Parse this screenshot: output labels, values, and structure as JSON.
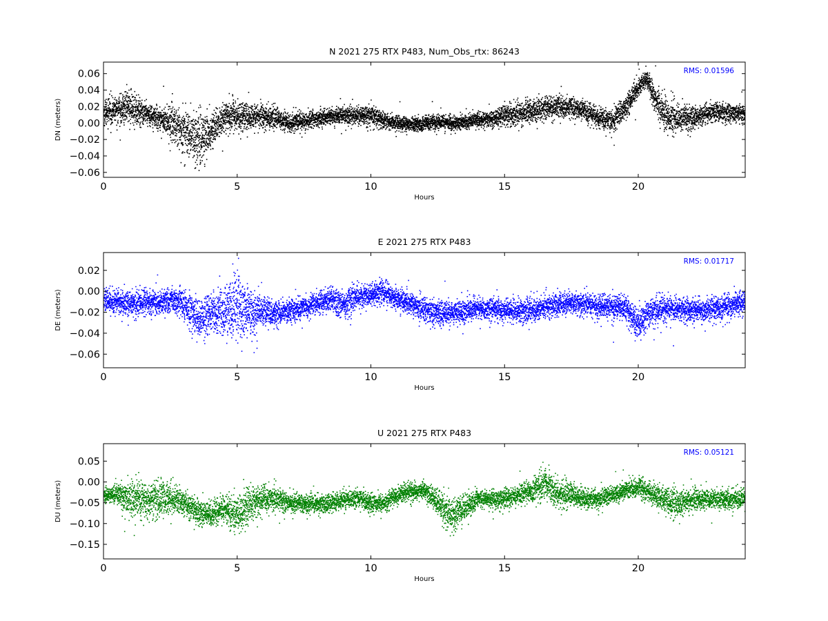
{
  "chart_data": [
    {
      "type": "scatter",
      "title": "N 2021 275 RTX  P483, Num_Obs_rtx: 86243",
      "xlabel": "Hours",
      "ylabel": "DN (meters)",
      "xlim": [
        0,
        24
      ],
      "ylim": [
        -0.066,
        0.074
      ],
      "xticks": [
        0,
        5,
        10,
        15,
        20
      ],
      "xtick_labels": [
        "0",
        "5",
        "10",
        "15",
        "20"
      ],
      "yticks": [
        -0.06,
        -0.04,
        -0.02,
        0.0,
        0.02,
        0.04,
        0.06
      ],
      "ytick_labels": [
        "−0.06",
        "−0.04",
        "−0.02",
        "0.00",
        "0.02",
        "0.04",
        "0.06"
      ],
      "annotation": "RMS:  0.01596",
      "annotation_color": "#0000ff",
      "color": "#000000",
      "grid": false,
      "series": [
        {
          "x": [
            0,
            0.5,
            1,
            1.5,
            2,
            2.5,
            3,
            3.5,
            4,
            4.5,
            5,
            5.5,
            6,
            6.5,
            7,
            7.5,
            8,
            8.5,
            9,
            9.5,
            10,
            10.5,
            11,
            11.5,
            12,
            12.5,
            13,
            13.5,
            14,
            14.5,
            15,
            15.5,
            16,
            16.5,
            17,
            17.5,
            18,
            18.5,
            19,
            19.5,
            20,
            20.3,
            20.6,
            21,
            21.5,
            22,
            22.5,
            23,
            23.5,
            24
          ],
          "y": [
            0.012,
            0.018,
            0.02,
            0.012,
            0.008,
            0.0,
            -0.008,
            -0.02,
            -0.01,
            0.008,
            0.01,
            0.008,
            0.01,
            0.005,
            0.0,
            0.004,
            0.006,
            0.008,
            0.01,
            0.01,
            0.01,
            0.004,
            0.0,
            -0.002,
            0.0,
            0.002,
            0.0,
            0.002,
            0.004,
            0.006,
            0.01,
            0.012,
            0.014,
            0.018,
            0.02,
            0.02,
            0.015,
            0.008,
            0.002,
            0.02,
            0.045,
            0.055,
            0.03,
            0.01,
            0.005,
            0.008,
            0.012,
            0.015,
            0.012,
            0.012
          ],
          "spread": [
            0.012,
            0.015,
            0.018,
            0.012,
            0.012,
            0.02,
            0.025,
            0.03,
            0.02,
            0.015,
            0.016,
            0.015,
            0.013,
            0.012,
            0.01,
            0.01,
            0.009,
            0.009,
            0.01,
            0.01,
            0.01,
            0.009,
            0.008,
            0.008,
            0.008,
            0.008,
            0.008,
            0.008,
            0.008,
            0.009,
            0.011,
            0.013,
            0.013,
            0.013,
            0.012,
            0.011,
            0.01,
            0.01,
            0.012,
            0.012,
            0.01,
            0.01,
            0.015,
            0.018,
            0.015,
            0.012,
            0.01,
            0.01,
            0.01,
            0.01
          ]
        }
      ]
    },
    {
      "type": "scatter",
      "title": "E 2021 275 RTX  P483",
      "xlabel": "Hours",
      "ylabel": "DE (meters)",
      "xlim": [
        0,
        24
      ],
      "ylim": [
        -0.073,
        0.037
      ],
      "xticks": [
        0,
        5,
        10,
        15,
        20
      ],
      "xtick_labels": [
        "0",
        "5",
        "10",
        "15",
        "20"
      ],
      "yticks": [
        -0.06,
        -0.04,
        -0.02,
        0.0,
        0.02
      ],
      "ytick_labels": [
        "−0.06",
        "−0.04",
        "−0.02",
        "0.00",
        "0.02"
      ],
      "annotation": "RMS:  0.01717",
      "annotation_color": "#0000ff",
      "color": "#0000ff",
      "grid": false,
      "series": [
        {
          "x": [
            0,
            0.5,
            1,
            1.5,
            2,
            2.5,
            3,
            3.5,
            4,
            4.5,
            5,
            5.5,
            6,
            6.5,
            7,
            7.5,
            8,
            8.5,
            9,
            9.5,
            10,
            10.5,
            11,
            11.5,
            12,
            12.5,
            13,
            13.5,
            14,
            14.5,
            15,
            15.5,
            16,
            16.5,
            17,
            17.5,
            18,
            18.5,
            19,
            19.5,
            19.8,
            20,
            20.5,
            21,
            21.5,
            22,
            22.5,
            23,
            23.5,
            24
          ],
          "y": [
            -0.008,
            -0.01,
            -0.012,
            -0.01,
            -0.01,
            -0.008,
            -0.012,
            -0.025,
            -0.02,
            -0.02,
            -0.015,
            -0.02,
            -0.02,
            -0.02,
            -0.018,
            -0.015,
            -0.01,
            -0.008,
            -0.012,
            -0.005,
            -0.002,
            0.0,
            -0.008,
            -0.012,
            -0.018,
            -0.02,
            -0.02,
            -0.018,
            -0.016,
            -0.016,
            -0.018,
            -0.018,
            -0.018,
            -0.014,
            -0.012,
            -0.01,
            -0.012,
            -0.014,
            -0.015,
            -0.016,
            -0.025,
            -0.03,
            -0.018,
            -0.016,
            -0.016,
            -0.018,
            -0.018,
            -0.015,
            -0.012,
            -0.01
          ],
          "spread": [
            0.01,
            0.01,
            0.011,
            0.01,
            0.01,
            0.01,
            0.012,
            0.018,
            0.016,
            0.02,
            0.028,
            0.02,
            0.012,
            0.01,
            0.009,
            0.009,
            0.009,
            0.01,
            0.012,
            0.01,
            0.01,
            0.01,
            0.009,
            0.01,
            0.011,
            0.011,
            0.01,
            0.01,
            0.009,
            0.009,
            0.009,
            0.01,
            0.01,
            0.009,
            0.009,
            0.009,
            0.01,
            0.01,
            0.01,
            0.01,
            0.015,
            0.013,
            0.011,
            0.01,
            0.01,
            0.01,
            0.01,
            0.01,
            0.01,
            0.01
          ]
        }
      ]
    },
    {
      "type": "scatter",
      "title": "U 2021 275 RTX  P483",
      "xlabel": "Hours",
      "ylabel": "DU (meters)",
      "xlim": [
        0,
        24
      ],
      "ylim": [
        -0.185,
        0.092
      ],
      "xticks": [
        0,
        5,
        10,
        15,
        20
      ],
      "xtick_labels": [
        "0",
        "5",
        "10",
        "15",
        "20"
      ],
      "yticks": [
        -0.15,
        -0.1,
        -0.05,
        0.0,
        0.05
      ],
      "ytick_labels": [
        "−0.15",
        "−0.10",
        "−0.05",
        "0.00",
        "0.05"
      ],
      "annotation": "RMS:  0.05121",
      "annotation_color": "#0000ff",
      "color": "#008000",
      "grid": false,
      "series": [
        {
          "x": [
            0,
            0.5,
            1,
            1.5,
            2,
            2.5,
            3,
            3.5,
            4,
            4.5,
            5,
            5.5,
            6,
            6.5,
            7,
            7.5,
            8,
            8.5,
            9,
            9.5,
            10,
            10.5,
            11,
            11.5,
            12,
            12.5,
            13,
            13.5,
            14,
            14.5,
            15,
            15.5,
            16,
            16.5,
            17,
            17.5,
            18,
            18.5,
            19,
            19.5,
            20,
            20.5,
            21,
            21.5,
            22,
            22.5,
            23,
            23.5,
            24
          ],
          "y": [
            -0.03,
            -0.03,
            -0.04,
            -0.04,
            -0.04,
            -0.04,
            -0.05,
            -0.07,
            -0.08,
            -0.06,
            -0.08,
            -0.05,
            -0.04,
            -0.04,
            -0.05,
            -0.05,
            -0.05,
            -0.05,
            -0.04,
            -0.04,
            -0.05,
            -0.05,
            -0.03,
            -0.02,
            -0.02,
            -0.05,
            -0.08,
            -0.06,
            -0.04,
            -0.04,
            -0.04,
            -0.03,
            -0.02,
            0.0,
            -0.03,
            -0.03,
            -0.04,
            -0.04,
            -0.03,
            -0.02,
            -0.01,
            -0.03,
            -0.04,
            -0.05,
            -0.04,
            -0.04,
            -0.04,
            -0.04,
            -0.04
          ],
          "spread": [
            0.015,
            0.02,
            0.04,
            0.04,
            0.04,
            0.035,
            0.03,
            0.03,
            0.025,
            0.03,
            0.045,
            0.035,
            0.03,
            0.025,
            0.02,
            0.02,
            0.02,
            0.02,
            0.02,
            0.02,
            0.02,
            0.02,
            0.02,
            0.02,
            0.02,
            0.03,
            0.04,
            0.03,
            0.02,
            0.02,
            0.02,
            0.02,
            0.025,
            0.035,
            0.03,
            0.025,
            0.02,
            0.02,
            0.02,
            0.02,
            0.02,
            0.025,
            0.03,
            0.03,
            0.025,
            0.02,
            0.02,
            0.02,
            0.02
          ]
        }
      ]
    }
  ]
}
